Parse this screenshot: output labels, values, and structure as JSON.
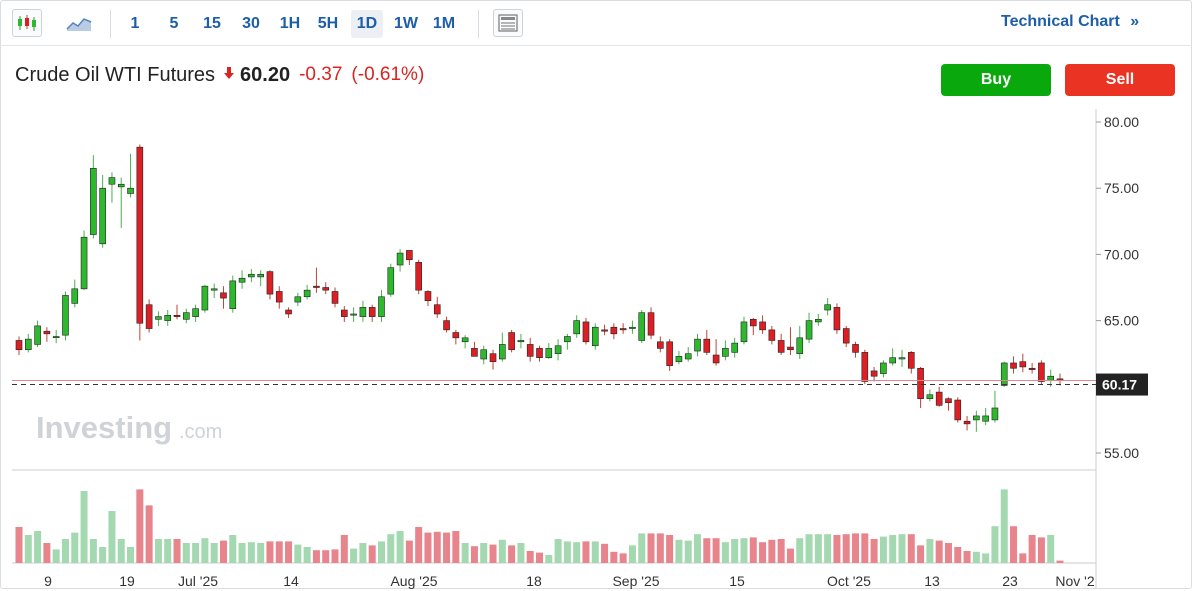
{
  "toolbar": {
    "timeframes": [
      "1",
      "5",
      "15",
      "30",
      "1H",
      "5H",
      "1D",
      "1W",
      "1M"
    ],
    "active_timeframe": "1D",
    "technical_link": "Technical Chart",
    "technical_link_arrow": "»"
  },
  "instrument": {
    "name": "Crude Oil WTI Futures",
    "price": "60.20",
    "change": "-0.37",
    "change_pct": "(-0.61%)"
  },
  "actions": {
    "buy": "Buy",
    "sell": "Sell"
  },
  "watermark": {
    "main": "Investing",
    "suffix": ".com"
  },
  "colors": {
    "up": "#2eb82e",
    "down": "#dc1f24",
    "vol_up": "#a3d8b0",
    "vol_down": "#e7848c",
    "buy": "#09a90e",
    "sell": "#ea3323",
    "link": "#1d5ea8",
    "price_tag": "#222222"
  },
  "chart_data": {
    "type": "candlestick",
    "y_ticks": [
      "80.00",
      "75.00",
      "70.00",
      "65.00",
      "60.00",
      "55.00"
    ],
    "ylim": [
      54,
      80.5
    ],
    "last_price_label": "60.17",
    "last_price": 60.17,
    "x_labels": [
      "9",
      "19",
      "Jul '25",
      "14",
      "Aug '25",
      "18",
      "Sep '25",
      "15",
      "Oct '25",
      "13",
      "23",
      "Nov '2"
    ],
    "candles": [
      [
        63.5,
        62.8,
        63.8,
        62.4,
        0.45
      ],
      [
        62.8,
        63.6,
        64.0,
        62.6,
        0.35
      ],
      [
        63.2,
        64.6,
        65.0,
        63.0,
        0.4
      ],
      [
        64.2,
        64.0,
        64.5,
        63.4,
        0.25
      ],
      [
        63.8,
        63.8,
        64.3,
        63.3,
        0.17
      ],
      [
        63.9,
        66.9,
        67.2,
        63.5,
        0.3
      ],
      [
        66.3,
        67.4,
        68.1,
        66.0,
        0.38
      ],
      [
        67.4,
        71.3,
        71.8,
        67.3,
        0.9
      ],
      [
        71.5,
        76.5,
        77.5,
        71.2,
        0.3
      ],
      [
        70.8,
        75.0,
        76.0,
        70.5,
        0.2
      ],
      [
        75.3,
        75.8,
        76.2,
        73.9,
        0.65
      ],
      [
        75.1,
        75.3,
        75.8,
        72.0,
        0.3
      ],
      [
        74.6,
        75.0,
        77.6,
        74.3,
        0.2
      ],
      [
        78.1,
        64.8,
        78.3,
        63.5,
        0.92
      ],
      [
        66.2,
        64.4,
        66.6,
        64.1,
        0.72
      ],
      [
        65.1,
        65.3,
        65.7,
        64.6,
        0.3
      ],
      [
        65.0,
        65.4,
        65.8,
        64.6,
        0.3
      ],
      [
        65.4,
        65.3,
        66.2,
        65.1,
        0.3
      ],
      [
        65.1,
        65.6,
        65.9,
        64.8,
        0.25
      ],
      [
        65.3,
        65.9,
        66.2,
        64.9,
        0.25
      ],
      [
        65.8,
        67.6,
        67.7,
        65.6,
        0.31
      ],
      [
        67.3,
        67.4,
        67.8,
        66.7,
        0.25
      ],
      [
        67.1,
        66.7,
        67.6,
        65.9,
        0.28
      ],
      [
        65.9,
        68.0,
        68.4,
        65.6,
        0.35
      ],
      [
        67.9,
        68.2,
        68.8,
        67.4,
        0.25
      ],
      [
        68.3,
        68.5,
        68.9,
        67.9,
        0.26
      ],
      [
        68.3,
        68.5,
        68.8,
        67.6,
        0.25
      ],
      [
        68.7,
        67.0,
        68.8,
        66.6,
        0.27
      ],
      [
        67.2,
        66.4,
        67.6,
        65.9,
        0.27
      ],
      [
        65.8,
        65.5,
        66.0,
        65.2,
        0.27
      ],
      [
        66.4,
        66.8,
        67.1,
        66.1,
        0.23
      ],
      [
        66.8,
        67.3,
        67.7,
        66.6,
        0.2
      ],
      [
        67.6,
        67.5,
        69.0,
        67.1,
        0.16
      ],
      [
        67.5,
        67.3,
        67.9,
        67.0,
        0.16
      ],
      [
        67.2,
        66.3,
        67.5,
        66.0,
        0.17
      ],
      [
        65.8,
        65.3,
        66.1,
        64.9,
        0.35
      ],
      [
        65.5,
        65.5,
        66.0,
        64.9,
        0.18
      ],
      [
        65.3,
        66.0,
        66.5,
        64.9,
        0.25
      ],
      [
        66.0,
        65.3,
        66.2,
        64.9,
        0.22
      ],
      [
        65.3,
        66.8,
        67.3,
        64.9,
        0.27
      ],
      [
        67.0,
        69.0,
        69.3,
        66.8,
        0.36
      ],
      [
        69.2,
        70.1,
        70.4,
        68.7,
        0.4
      ],
      [
        70.3,
        69.6,
        70.3,
        69.2,
        0.28
      ],
      [
        69.4,
        67.3,
        69.6,
        67.0,
        0.45
      ],
      [
        67.2,
        66.5,
        67.3,
        66.1,
        0.38
      ],
      [
        66.2,
        65.5,
        66.8,
        65.2,
        0.39
      ],
      [
        65.0,
        64.3,
        65.3,
        64.1,
        0.38
      ],
      [
        64.1,
        63.7,
        64.3,
        63.2,
        0.4
      ],
      [
        63.4,
        63.7,
        63.9,
        62.9,
        0.25
      ],
      [
        62.9,
        62.3,
        63.4,
        62.3,
        0.21
      ],
      [
        62.1,
        62.8,
        63.1,
        61.7,
        0.25
      ],
      [
        62.5,
        61.9,
        62.8,
        61.3,
        0.23
      ],
      [
        62.1,
        63.2,
        64.1,
        61.9,
        0.29
      ],
      [
        64.1,
        62.8,
        64.3,
        62.6,
        0.22
      ],
      [
        63.4,
        63.5,
        64.0,
        62.9,
        0.25
      ],
      [
        63.2,
        62.3,
        63.7,
        61.9,
        0.15
      ],
      [
        62.9,
        62.2,
        63.1,
        61.9,
        0.13
      ],
      [
        62.2,
        62.9,
        63.3,
        62.1,
        0.1
      ],
      [
        62.5,
        63.1,
        63.6,
        62.0,
        0.3
      ],
      [
        63.4,
        63.8,
        64.0,
        62.8,
        0.27
      ],
      [
        64.0,
        65.0,
        65.4,
        63.7,
        0.26
      ],
      [
        64.9,
        63.4,
        65.2,
        63.2,
        0.27
      ],
      [
        63.1,
        64.5,
        64.8,
        62.8,
        0.27
      ],
      [
        64.3,
        64.2,
        64.7,
        63.9,
        0.24
      ],
      [
        64.5,
        64.0,
        64.8,
        63.6,
        0.14
      ],
      [
        64.4,
        64.3,
        64.8,
        64.0,
        0.12
      ],
      [
        64.4,
        64.5,
        65.0,
        64.0,
        0.22
      ],
      [
        63.5,
        65.6,
        65.8,
        63.3,
        0.37
      ],
      [
        65.6,
        63.9,
        66.0,
        63.6,
        0.37
      ],
      [
        63.4,
        62.9,
        63.8,
        62.6,
        0.37
      ],
      [
        63.4,
        61.6,
        63.6,
        61.2,
        0.35
      ],
      [
        61.9,
        62.3,
        62.7,
        61.7,
        0.29
      ],
      [
        62.1,
        62.5,
        63.0,
        61.9,
        0.28
      ],
      [
        62.7,
        63.6,
        64.0,
        62.3,
        0.36
      ],
      [
        63.6,
        62.6,
        64.3,
        62.4,
        0.31
      ],
      [
        62.4,
        61.8,
        63.6,
        61.6,
        0.31
      ],
      [
        62.3,
        62.9,
        63.5,
        62.0,
        0.26
      ],
      [
        62.6,
        63.3,
        63.7,
        62.2,
        0.3
      ],
      [
        63.4,
        64.9,
        65.3,
        63.2,
        0.31
      ],
      [
        65.1,
        64.6,
        65.2,
        63.9,
        0.32
      ],
      [
        64.9,
        64.3,
        65.4,
        64.0,
        0.26
      ],
      [
        64.3,
        63.5,
        64.6,
        63.2,
        0.29
      ],
      [
        63.5,
        62.6,
        64.0,
        62.4,
        0.3
      ],
      [
        63.0,
        62.8,
        64.5,
        62.4,
        0.18
      ],
      [
        62.5,
        63.7,
        64.6,
        62.1,
        0.31
      ],
      [
        63.6,
        65.0,
        65.6,
        63.3,
        0.36
      ],
      [
        64.9,
        65.1,
        65.5,
        64.6,
        0.36
      ],
      [
        65.8,
        66.2,
        66.7,
        65.4,
        0.36
      ],
      [
        66.0,
        64.3,
        66.3,
        64.0,
        0.35
      ],
      [
        64.4,
        63.3,
        64.6,
        63.0,
        0.36
      ],
      [
        63.2,
        62.6,
        63.4,
        62.2,
        0.37
      ],
      [
        62.6,
        60.4,
        62.8,
        60.2,
        0.37
      ],
      [
        61.2,
        60.8,
        61.5,
        60.4,
        0.3
      ],
      [
        61.0,
        61.8,
        62.0,
        60.7,
        0.33
      ],
      [
        61.8,
        62.2,
        62.9,
        61.6,
        0.35
      ],
      [
        62.1,
        62.2,
        62.8,
        61.5,
        0.36
      ],
      [
        62.6,
        61.4,
        62.7,
        61.0,
        0.36
      ],
      [
        61.4,
        59.1,
        61.5,
        58.4,
        0.22
      ],
      [
        59.1,
        59.4,
        59.8,
        58.9,
        0.3
      ],
      [
        59.6,
        58.6,
        60.0,
        58.5,
        0.28
      ],
      [
        59.1,
        58.8,
        59.2,
        58.2,
        0.25
      ],
      [
        59.0,
        57.5,
        59.2,
        57.3,
        0.2
      ],
      [
        57.4,
        57.2,
        57.8,
        56.7,
        0.15
      ],
      [
        57.5,
        57.8,
        58.2,
        56.6,
        0.14
      ],
      [
        57.4,
        57.8,
        58.4,
        57.1,
        0.12
      ],
      [
        57.5,
        58.4,
        59.7,
        57.3,
        0.46
      ],
      [
        60.1,
        61.8,
        61.9,
        60.0,
        0.92
      ],
      [
        61.8,
        61.4,
        62.3,
        61.0,
        0.46
      ],
      [
        61.9,
        61.5,
        62.5,
        61.1,
        0.12
      ],
      [
        61.4,
        61.3,
        61.8,
        61.0,
        0.35
      ],
      [
        61.8,
        60.4,
        62.0,
        60.2,
        0.32
      ],
      [
        60.5,
        60.8,
        61.3,
        60.0,
        0.35
      ],
      [
        60.6,
        60.5,
        61.0,
        60.1,
        0.03
      ]
    ],
    "volumes_end": [
      [
        0.45,
        1
      ],
      [
        0.33,
        1
      ],
      [
        0.2,
        0
      ],
      [
        0.25,
        0
      ]
    ]
  }
}
